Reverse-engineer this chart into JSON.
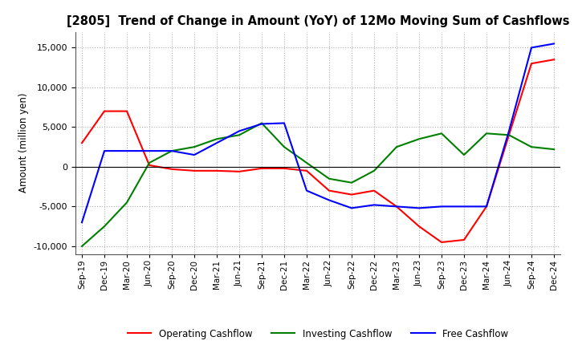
{
  "title": "[2805]  Trend of Change in Amount (YoY) of 12Mo Moving Sum of Cashflows",
  "ylabel": "Amount (million yen)",
  "ylim": [
    -11000,
    17000
  ],
  "yticks": [
    -10000,
    -5000,
    0,
    5000,
    10000,
    15000
  ],
  "x_labels": [
    "Sep-19",
    "Dec-19",
    "Mar-20",
    "Jun-20",
    "Sep-20",
    "Dec-20",
    "Mar-21",
    "Jun-21",
    "Sep-21",
    "Dec-21",
    "Mar-22",
    "Jun-22",
    "Sep-22",
    "Dec-22",
    "Mar-23",
    "Jun-23",
    "Sep-23",
    "Dec-23",
    "Mar-24",
    "Jun-24",
    "Sep-24",
    "Dec-24"
  ],
  "operating": [
    3000,
    7000,
    7000,
    200,
    -300,
    -500,
    -500,
    -600,
    -200,
    -200,
    -500,
    -3000,
    -3500,
    -3000,
    -5000,
    -7500,
    -9500,
    -9200,
    -5000,
    4000,
    13000,
    13500
  ],
  "investing": [
    -10000,
    -7500,
    -4500,
    500,
    2000,
    2500,
    3500,
    4000,
    5500,
    2500,
    500,
    -1500,
    -2000,
    -500,
    2500,
    3500,
    4200,
    1500,
    4200,
    4000,
    2500,
    2200
  ],
  "free": [
    -7000,
    2000,
    2000,
    2000,
    2000,
    1500,
    3000,
    4500,
    5400,
    5500,
    -3000,
    -4200,
    -5200,
    -4800,
    -5000,
    -5200,
    -5000,
    -5000,
    -5000,
    4500,
    15000,
    15500
  ],
  "operating_color": "#ff0000",
  "investing_color": "#008000",
  "free_color": "#0000ff",
  "grid_color": "#b0b0b0",
  "background_color": "#ffffff"
}
